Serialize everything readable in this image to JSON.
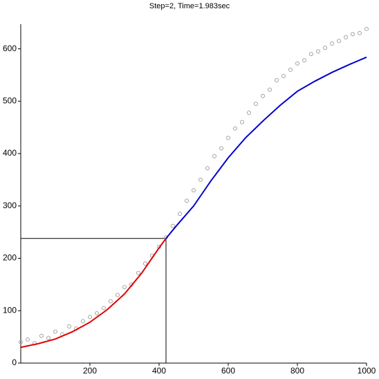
{
  "chart_data": {
    "type": "scatter",
    "title": "Step=2,  Time=1.983sec",
    "xlim": [
      0,
      1000
    ],
    "ylim": [
      0,
      647
    ],
    "xticks": [
      200,
      400,
      600,
      800,
      1000
    ],
    "yticks": [
      0,
      100,
      200,
      300,
      400,
      500,
      600
    ],
    "scatter": {
      "color": "#a0a0a0",
      "x": [
        0,
        20,
        40,
        60,
        80,
        100,
        120,
        140,
        160,
        180,
        200,
        220,
        240,
        260,
        280,
        300,
        320,
        340,
        360,
        380,
        400,
        420,
        440,
        460,
        480,
        500,
        520,
        540,
        560,
        580,
        600,
        620,
        640,
        660,
        680,
        700,
        720,
        740,
        760,
        780,
        800,
        820,
        840,
        860,
        880,
        900,
        920,
        940,
        960,
        980,
        1000
      ],
      "values": [
        40,
        45,
        38,
        52,
        48,
        60,
        55,
        70,
        66,
        80,
        88,
        95,
        105,
        118,
        130,
        145,
        150,
        172,
        190,
        205,
        222,
        240,
        262,
        285,
        310,
        330,
        350,
        372,
        395,
        410,
        430,
        448,
        460,
        478,
        495,
        510,
        522,
        540,
        548,
        560,
        572,
        578,
        590,
        595,
        602,
        610,
        615,
        622,
        628,
        630,
        638
      ]
    },
    "series": [
      {
        "color": "#e00000",
        "x": [
          0,
          50,
          100,
          150,
          200,
          250,
          300,
          350,
          400,
          420
        ],
        "values": [
          30,
          37,
          46,
          60,
          78,
          102,
          132,
          172,
          220,
          238
        ]
      },
      {
        "color": "#0000cc",
        "x": [
          420,
          450,
          500,
          550,
          600,
          650,
          700,
          750,
          800,
          850,
          900,
          950,
          1000
        ],
        "values": [
          238,
          262,
          300,
          348,
          392,
          430,
          462,
          492,
          519,
          538,
          555,
          570,
          584
        ]
      }
    ],
    "crosshair": {
      "x": 420,
      "y": 238
    }
  }
}
